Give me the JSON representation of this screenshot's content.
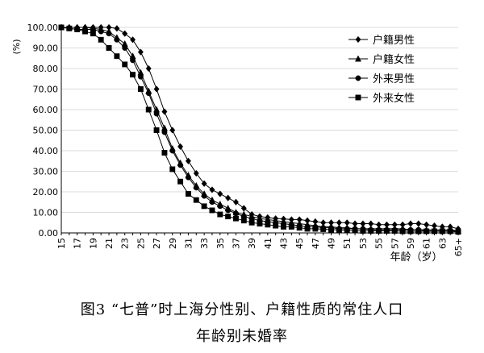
{
  "caption": {
    "line1": "图3 “七普”时上海分性别、户籍性质的常住人口",
    "line2": "年龄别未婚率"
  },
  "chart_data": {
    "type": "line",
    "ylabel": "(%)",
    "xlabel": "年龄（岁）",
    "ylim": [
      0,
      100
    ],
    "yticks": [
      "0.00",
      "10.00",
      "20.00",
      "30.00",
      "40.00",
      "50.00",
      "60.00",
      "70.00",
      "80.00",
      "90.00",
      "100.00"
    ],
    "x": [
      "15",
      "16",
      "17",
      "18",
      "19",
      "20",
      "21",
      "22",
      "23",
      "24",
      "25",
      "26",
      "27",
      "28",
      "29",
      "30",
      "31",
      "32",
      "33",
      "34",
      "35",
      "36",
      "37",
      "38",
      "39",
      "40",
      "41",
      "42",
      "43",
      "44",
      "45",
      "46",
      "47",
      "48",
      "49",
      "50",
      "51",
      "52",
      "53",
      "54",
      "55",
      "56",
      "57",
      "58",
      "59",
      "60",
      "61",
      "62",
      "63",
      "64",
      "65+"
    ],
    "xticks": [
      "15",
      "17",
      "19",
      "21",
      "23",
      "25",
      "27",
      "29",
      "31",
      "33",
      "35",
      "37",
      "39",
      "41",
      "43",
      "45",
      "47",
      "49",
      "51",
      "53",
      "55",
      "57",
      "59",
      "61",
      "63",
      "65+"
    ],
    "legend_position": "top-right",
    "grid": true,
    "series": [
      {
        "name": "户籍男性",
        "marker": "diamond",
        "values": [
          100,
          100,
          100,
          100,
          100,
          100,
          100,
          99.5,
          97,
          94,
          88,
          80,
          70,
          59,
          50,
          42,
          35,
          29,
          24,
          21,
          19,
          17,
          15,
          12,
          9,
          8,
          7.5,
          7,
          6.8,
          6.5,
          6.5,
          6,
          5.5,
          5,
          5,
          5,
          5,
          4.5,
          4.5,
          4.5,
          4,
          4,
          4,
          4,
          4.5,
          4.5,
          4,
          3.5,
          3,
          3,
          2
        ]
      },
      {
        "name": "户籍女性",
        "marker": "triangle",
        "values": [
          100,
          100,
          100,
          100,
          99.5,
          99,
          98,
          95,
          92,
          86,
          78,
          69,
          60,
          51,
          41,
          34,
          28,
          23,
          19,
          16,
          14,
          12,
          10,
          9,
          8,
          7,
          6.5,
          6,
          5.5,
          5,
          4.5,
          4,
          3.5,
          3,
          3,
          2.5,
          2.5,
          2,
          2,
          2,
          2,
          2,
          2,
          2,
          1.5,
          1.5,
          1.5,
          1.5,
          1.5,
          1.5,
          1
        ]
      },
      {
        "name": "外来男性",
        "marker": "circle",
        "values": [
          100,
          99.5,
          99,
          99,
          99,
          98,
          97,
          94,
          90,
          84,
          76,
          68,
          58,
          49,
          40,
          33,
          27,
          22,
          18,
          15,
          13,
          11,
          9.5,
          8,
          7,
          6,
          5.5,
          5,
          4.5,
          4,
          3.5,
          3,
          3,
          2.5,
          2.5,
          2,
          2,
          2,
          2,
          1.5,
          1.5,
          1.5,
          1.5,
          1.5,
          1.5,
          1.5,
          1,
          1,
          1,
          1,
          1
        ]
      },
      {
        "name": "外来女性",
        "marker": "square",
        "values": [
          100,
          99.5,
          99,
          98,
          97,
          94,
          90,
          86,
          82,
          77,
          70,
          60,
          50,
          39,
          31,
          25,
          19,
          16,
          13,
          11,
          9,
          8,
          7,
          6,
          5,
          4.5,
          4,
          3.5,
          3,
          3,
          2.5,
          2,
          2,
          1.8,
          1.5,
          1.5,
          1.2,
          1.2,
          1,
          1,
          1,
          1,
          1,
          0.8,
          0.8,
          0.8,
          0.8,
          0.8,
          0.8,
          0.8,
          0.5
        ]
      }
    ]
  }
}
